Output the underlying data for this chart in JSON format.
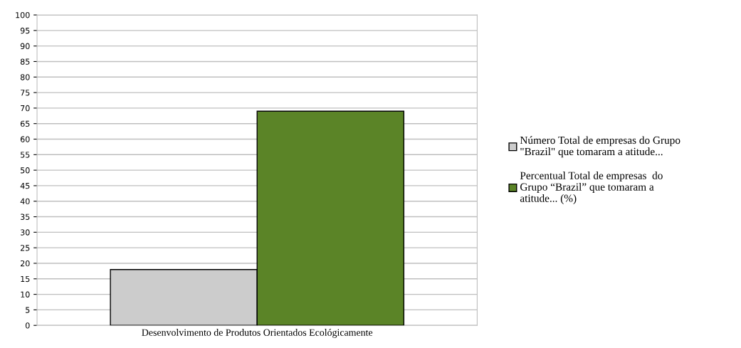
{
  "chart_data": {
    "type": "bar",
    "categories": [
      "Desenvolvimento de Produtos Orientados Ecológicamente"
    ],
    "series": [
      {
        "name": "Número Total de empresas do Grupo\n\"Brazil\" que tomaram a atitude...",
        "color": "#cccccc",
        "values": [
          18
        ]
      },
      {
        "name": "Percentual Total de empresas  do\nGrupo “Brazil” que tomaram a\natitude... (%)",
        "color": "#5b8427",
        "values": [
          69
        ]
      }
    ],
    "ylim": [
      0,
      100
    ],
    "yticks": [
      0,
      5,
      10,
      15,
      20,
      25,
      30,
      35,
      40,
      45,
      50,
      55,
      60,
      65,
      70,
      75,
      80,
      85,
      90,
      95,
      100
    ],
    "grid": "y",
    "legend": "right"
  }
}
